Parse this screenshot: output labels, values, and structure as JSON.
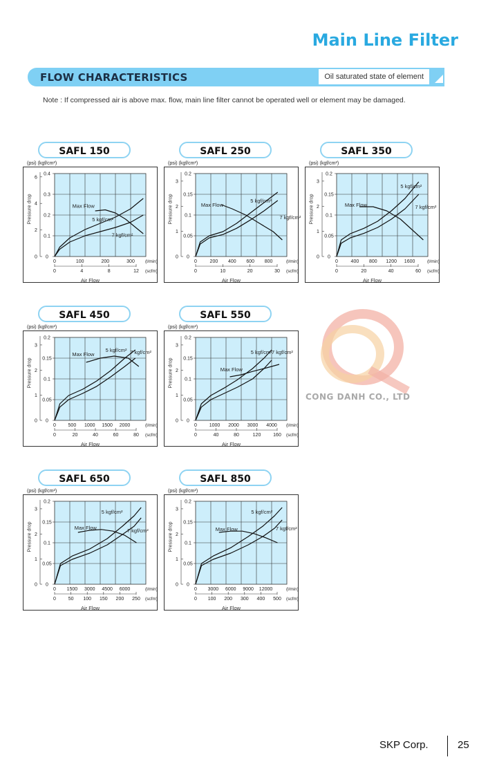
{
  "header": {
    "title": "Main Line Filter"
  },
  "section": {
    "title": "FLOW CHARACTERISTICS",
    "subtitle": "Oil saturated state of element"
  },
  "note": "Note : If compressed air is above max. flow, main line filter cannot be operated well or element may be damaged.",
  "watermark": {
    "text": "CONG DANH CO., LTD"
  },
  "footer": {
    "company": "SKP Corp.",
    "page": "25"
  },
  "common": {
    "units_label": "(psi)  (kgf/cm²)",
    "ylabel": "Pressure drop",
    "xlabel": "Air Flow",
    "lmin": "(l/min)",
    "scfm": "(scfm)"
  },
  "colors": {
    "plot_bg": "#cdeefb",
    "accent": "#29a9e0",
    "tab_border": "#8ed3f2"
  },
  "chart_data": [
    {
      "type": "line",
      "title": "SAFL 150",
      "ylim": [
        0,
        0.4
      ],
      "y_kgf_ticks": [
        "0",
        "0.1",
        "0.2",
        "0.3",
        "0.4"
      ],
      "y_kgf_values": [
        0,
        0.1,
        0.2,
        0.3,
        0.4
      ],
      "y_psi_ticks": [
        "0",
        "2",
        "4",
        "6"
      ],
      "y_psi_values": [
        0,
        2,
        4,
        6
      ],
      "xlim": [
        0,
        360
      ],
      "x_lmin_ticks": [
        "0",
        "100",
        "200",
        "300"
      ],
      "x_lmin_values": [
        0,
        100,
        200,
        300
      ],
      "x_scfm_ticks": [
        "0",
        "4",
        "8",
        "12"
      ],
      "series": [
        {
          "name": "5 kgf/cm²",
          "x": [
            0,
            20,
            60,
            120,
            180,
            240,
            300,
            350
          ],
          "y": [
            0,
            0.045,
            0.09,
            0.13,
            0.16,
            0.19,
            0.23,
            0.28
          ]
        },
        {
          "name": "7 kgf/cm²",
          "x": [
            0,
            20,
            60,
            120,
            180,
            240,
            300,
            350
          ],
          "y": [
            0,
            0.035,
            0.07,
            0.1,
            0.12,
            0.14,
            0.165,
            0.2
          ]
        },
        {
          "name": "Max Flow",
          "x": [
            160,
            200,
            240,
            280,
            320,
            350
          ],
          "y": [
            0.22,
            0.225,
            0.21,
            0.18,
            0.14,
            0.11
          ]
        }
      ],
      "annotations": [
        {
          "text": "Max Flow",
          "x": 70,
          "y": 0.235
        },
        {
          "text": "5 kgf/cm²",
          "x": 148,
          "y": 0.17
        },
        {
          "text": "7 kgf/cm²",
          "x": 225,
          "y": 0.095
        }
      ]
    },
    {
      "type": "line",
      "title": "SAFL 250",
      "ylim": [
        0,
        0.2
      ],
      "y_kgf_ticks": [
        "0",
        "0.05",
        "0.1",
        "0.15",
        "0.2"
      ],
      "y_kgf_values": [
        0,
        0.05,
        0.1,
        0.15,
        0.2
      ],
      "y_psi_ticks": [
        "0",
        "1",
        "2",
        "3"
      ],
      "y_psi_values": [
        0,
        1,
        2,
        3
      ],
      "xlim": [
        0,
        1000
      ],
      "x_lmin_ticks": [
        "0",
        "200",
        "400",
        "600",
        "800"
      ],
      "x_lmin_values": [
        0,
        200,
        400,
        600,
        800
      ],
      "x_scfm_ticks": [
        "0",
        "10",
        "20",
        "30"
      ],
      "series": [
        {
          "name": "5 kgf/cm²",
          "x": [
            0,
            50,
            150,
            300,
            450,
            600,
            750,
            900
          ],
          "y": [
            0,
            0.035,
            0.05,
            0.06,
            0.08,
            0.105,
            0.13,
            0.155
          ]
        },
        {
          "name": "7 kgf/cm²",
          "x": [
            0,
            50,
            150,
            300,
            450,
            600,
            750,
            900
          ],
          "y": [
            0,
            0.03,
            0.045,
            0.053,
            0.068,
            0.088,
            0.11,
            0.135
          ]
        },
        {
          "name": "Max Flow",
          "x": [
            280,
            400,
            550,
            700,
            850,
            950
          ],
          "y": [
            0.125,
            0.115,
            0.1,
            0.08,
            0.06,
            0.04
          ]
        }
      ],
      "annotations": [
        {
          "text": "Max Flow",
          "x": 60,
          "y": 0.12
        },
        {
          "text": "5 kgf/cm²",
          "x": 600,
          "y": 0.13
        },
        {
          "text": "7 kgf/cm²",
          "x": 920,
          "y": 0.09
        }
      ]
    },
    {
      "type": "line",
      "title": "SAFL 350",
      "ylim": [
        0,
        0.2
      ],
      "y_kgf_ticks": [
        "0",
        "0.05",
        "0.1",
        "0.15",
        "0.2"
      ],
      "y_kgf_values": [
        0,
        0.05,
        0.1,
        0.15,
        0.2
      ],
      "y_psi_ticks": [
        "0",
        "1",
        "2",
        "3"
      ],
      "y_psi_values": [
        0,
        1,
        2,
        3
      ],
      "xlim": [
        0,
        2000
      ],
      "x_lmin_ticks": [
        "0",
        "400",
        "800",
        "1200",
        "1600"
      ],
      "x_lmin_values": [
        0,
        400,
        800,
        1200,
        1600
      ],
      "x_scfm_ticks": [
        "0",
        "20",
        "40",
        "60"
      ],
      "series": [
        {
          "name": "5 kgf/cm²",
          "x": [
            0,
            100,
            300,
            600,
            900,
            1200,
            1500,
            1800
          ],
          "y": [
            0,
            0.04,
            0.055,
            0.068,
            0.085,
            0.11,
            0.14,
            0.18
          ]
        },
        {
          "name": "7 kgf/cm²",
          "x": [
            0,
            100,
            300,
            600,
            900,
            1200,
            1500,
            1800
          ],
          "y": [
            0,
            0.032,
            0.045,
            0.056,
            0.07,
            0.09,
            0.115,
            0.15
          ]
        },
        {
          "name": "Max Flow",
          "x": [
            500,
            800,
            1100,
            1400,
            1700,
            1900
          ],
          "y": [
            0.12,
            0.12,
            0.11,
            0.09,
            0.06,
            0.04
          ]
        }
      ],
      "annotations": [
        {
          "text": "Max Flow",
          "x": 180,
          "y": 0.12
        },
        {
          "text": "5 kgf/cm²",
          "x": 1400,
          "y": 0.165
        },
        {
          "text": "7 kgf/cm²",
          "x": 1720,
          "y": 0.115
        }
      ]
    },
    {
      "type": "line",
      "title": "SAFL 450",
      "ylim": [
        0,
        0.2
      ],
      "y_kgf_ticks": [
        "0",
        "0.05",
        "0.1",
        "0.15",
        "0.2"
      ],
      "y_kgf_values": [
        0,
        0.05,
        0.1,
        0.15,
        0.2
      ],
      "y_psi_ticks": [
        "0",
        "1",
        "2",
        "3"
      ],
      "y_psi_values": [
        0,
        1,
        2,
        3
      ],
      "xlim": [
        0,
        2600
      ],
      "x_lmin_ticks": [
        "0",
        "500",
        "1000",
        "1500",
        "2000"
      ],
      "x_lmin_values": [
        0,
        500,
        1000,
        1500,
        2000
      ],
      "x_scfm_ticks": [
        "0",
        "20",
        "40",
        "60",
        "80"
      ],
      "series": [
        {
          "name": "5 kgf/cm²",
          "x": [
            0,
            150,
            400,
            800,
            1200,
            1600,
            2000,
            2300
          ],
          "y": [
            0,
            0.04,
            0.06,
            0.075,
            0.095,
            0.12,
            0.15,
            0.17
          ]
        },
        {
          "name": "7 kgf/cm²",
          "x": [
            0,
            150,
            400,
            800,
            1200,
            1600,
            2000,
            2300
          ],
          "y": [
            0,
            0.032,
            0.05,
            0.065,
            0.082,
            0.105,
            0.13,
            0.15
          ]
        },
        {
          "name": "Max Flow",
          "x": [
            900,
            1300,
            1700,
            2100,
            2400
          ],
          "y": [
            0.14,
            0.15,
            0.155,
            0.15,
            0.13
          ]
        }
      ],
      "annotations": [
        {
          "text": "Max Flow",
          "x": 500,
          "y": 0.155
        },
        {
          "text": "5 kgf/cm²",
          "x": 1450,
          "y": 0.165
        },
        {
          "text": "7 kgf/cm²",
          "x": 2150,
          "y": 0.16
        }
      ]
    },
    {
      "type": "line",
      "title": "SAFL 550",
      "ylim": [
        0,
        0.2
      ],
      "y_kgf_ticks": [
        "0",
        "0.05",
        "0.1",
        "0.15",
        "0.2"
      ],
      "y_kgf_values": [
        0,
        0.05,
        0.1,
        0.15,
        0.2
      ],
      "y_psi_ticks": [
        "0",
        "1",
        "2",
        "3"
      ],
      "y_psi_values": [
        0,
        1,
        2,
        3
      ],
      "xlim": [
        0,
        4800
      ],
      "x_lmin_ticks": [
        "0",
        "1000",
        "2000",
        "3000",
        "4000"
      ],
      "x_lmin_values": [
        0,
        1000,
        2000,
        3000,
        4000
      ],
      "x_scfm_ticks": [
        "0",
        "40",
        "80",
        "120",
        "160"
      ],
      "series": [
        {
          "name": "5 kgf/cm²",
          "x": [
            0,
            300,
            800,
            1500,
            2200,
            3000,
            3600,
            4000
          ],
          "y": [
            0,
            0.04,
            0.06,
            0.078,
            0.098,
            0.125,
            0.15,
            0.17
          ]
        },
        {
          "name": "7 kgf/cm²",
          "x": [
            0,
            300,
            800,
            1500,
            2200,
            3000,
            3600,
            4000
          ],
          "y": [
            0,
            0.032,
            0.05,
            0.065,
            0.08,
            0.1,
            0.125,
            0.145
          ]
        },
        {
          "name": "Max Flow",
          "x": [
            1800,
            2400,
            3000,
            3600,
            4400
          ],
          "y": [
            0.105,
            0.11,
            0.118,
            0.125,
            0.135
          ]
        }
      ],
      "annotations": [
        {
          "text": "Max Flow",
          "x": 1300,
          "y": 0.118
        },
        {
          "text": "5 kgf/cm²",
          "x": 2900,
          "y": 0.16
        },
        {
          "text": "7 kgf/cm²",
          "x": 4000,
          "y": 0.16
        }
      ]
    },
    {
      "type": "line",
      "title": "SAFL 650",
      "ylim": [
        0,
        0.2
      ],
      "y_kgf_ticks": [
        "0",
        "0.05",
        "0.1",
        "0.15",
        "0.2"
      ],
      "y_kgf_values": [
        0,
        0.05,
        0.1,
        0.15,
        0.2
      ],
      "y_psi_ticks": [
        "0",
        "1",
        "2",
        "3"
      ],
      "y_psi_values": [
        0,
        1,
        2,
        3
      ],
      "xlim": [
        0,
        7800
      ],
      "x_lmin_ticks": [
        "0",
        "1500",
        "3000",
        "4500",
        "6000"
      ],
      "x_lmin_values": [
        0,
        1500,
        3000,
        4500,
        6000
      ],
      "x_scfm_ticks": [
        "0",
        "50",
        "100",
        "150",
        "200",
        "250"
      ],
      "series": [
        {
          "name": "5 kgf/cm²",
          "x": [
            0,
            500,
            1500,
            3000,
            4500,
            5800,
            6800,
            7400
          ],
          "y": [
            0,
            0.05,
            0.068,
            0.085,
            0.11,
            0.14,
            0.165,
            0.185
          ]
        },
        {
          "name": "7 kgf/cm²",
          "x": [
            0,
            500,
            1500,
            3000,
            4500,
            5800,
            6800,
            7400
          ],
          "y": [
            0,
            0.045,
            0.06,
            0.075,
            0.095,
            0.12,
            0.14,
            0.16
          ]
        },
        {
          "name": "Max Flow",
          "x": [
            2000,
            3000,
            4000,
            5000,
            6000,
            7000
          ],
          "y": [
            0.125,
            0.13,
            0.132,
            0.128,
            0.118,
            0.1
          ]
        }
      ],
      "annotations": [
        {
          "text": "Max Flow",
          "x": 1700,
          "y": 0.132
        },
        {
          "text": "5 kgf/cm²",
          "x": 4000,
          "y": 0.17
        },
        {
          "text": "7 kgf/cm²",
          "x": 6200,
          "y": 0.125
        }
      ]
    },
    {
      "type": "line",
      "title": "SAFL 850",
      "ylim": [
        0,
        0.2
      ],
      "y_kgf_ticks": [
        "0",
        "0.05",
        "0.1",
        "0.15",
        "0.2"
      ],
      "y_kgf_values": [
        0,
        0.05,
        0.1,
        0.15,
        0.2
      ],
      "y_psi_ticks": [
        "0",
        "1",
        "2",
        "3"
      ],
      "y_psi_values": [
        0,
        1,
        2,
        3
      ],
      "xlim": [
        0,
        15600
      ],
      "x_lmin_ticks": [
        "0",
        "3000",
        "6000",
        "9000",
        "12000"
      ],
      "x_lmin_values": [
        0,
        3000,
        6000,
        9000,
        12000
      ],
      "x_scfm_ticks": [
        "0",
        "100",
        "200",
        "300",
        "400",
        "500"
      ],
      "series": [
        {
          "name": "5 kgf/cm²",
          "x": [
            0,
            1000,
            3000,
            6000,
            9000,
            11500,
            13500,
            14800
          ],
          "y": [
            0,
            0.05,
            0.068,
            0.088,
            0.115,
            0.14,
            0.165,
            0.185
          ]
        },
        {
          "name": "7 kgf/cm²",
          "x": [
            0,
            1000,
            3000,
            6000,
            9000,
            11500,
            13500,
            14800
          ],
          "y": [
            0,
            0.045,
            0.06,
            0.075,
            0.095,
            0.115,
            0.135,
            0.155
          ]
        },
        {
          "name": "Max Flow",
          "x": [
            4000,
            6000,
            8000,
            10000,
            12000,
            14000
          ],
          "y": [
            0.125,
            0.128,
            0.128,
            0.122,
            0.112,
            0.1
          ]
        }
      ],
      "annotations": [
        {
          "text": "Max Flow",
          "x": 3400,
          "y": 0.128
        },
        {
          "text": "5 kgf/cm²",
          "x": 9500,
          "y": 0.17
        },
        {
          "text": "7 kgf/cm²",
          "x": 13700,
          "y": 0.13
        }
      ]
    }
  ]
}
